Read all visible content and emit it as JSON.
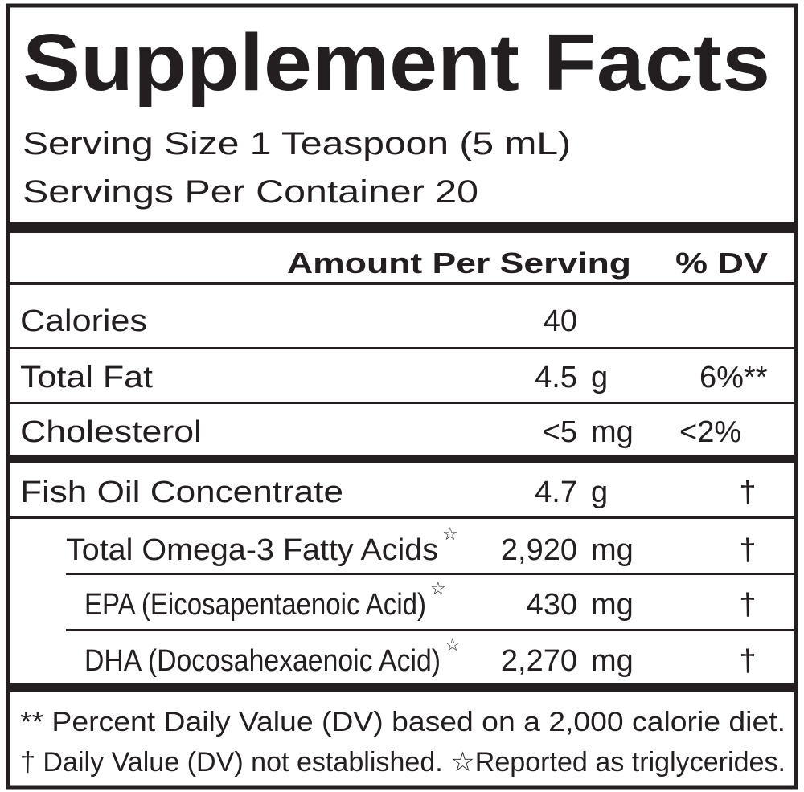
{
  "header": {
    "title": "Supplement Facts",
    "serving_size": "Serving Size 1 Teaspoon (5 mL)",
    "servings_per_container": "Servings Per Container 20"
  },
  "table": {
    "columns": [
      "Amount Per Serving",
      "% DV"
    ],
    "rows": [
      {
        "name": "Calories",
        "amount": "40"
      },
      {
        "name": "Total Fat",
        "amount": "4.5",
        "unit": "g",
        "dv": "6%**"
      },
      {
        "name": "Cholesterol",
        "amount": "<5",
        "unit": "mg",
        "dv": "<2%"
      },
      {
        "name": "Fish Oil Concentrate",
        "amount": "4.7",
        "unit": "g",
        "dv": "†"
      },
      {
        "name": "Total Omega-3 Fatty Acids",
        "mark": "☆",
        "amount": "2,920",
        "unit": "mg",
        "dv": "†"
      },
      {
        "name": "EPA (Eicosapentaenoic Acid)",
        "mark": "☆",
        "amount": "430",
        "unit": "mg",
        "dv": "†"
      },
      {
        "name": "DHA (Docosahexaenoic Acid)",
        "mark": "☆",
        "amount": "2,270",
        "unit": "mg",
        "dv": "†"
      }
    ]
  },
  "footnotes": [
    "** Percent Daily Value (DV) based on a 2,000 calorie diet.",
    "† Daily Value (DV) not established. ☆Reported as triglycerides."
  ]
}
